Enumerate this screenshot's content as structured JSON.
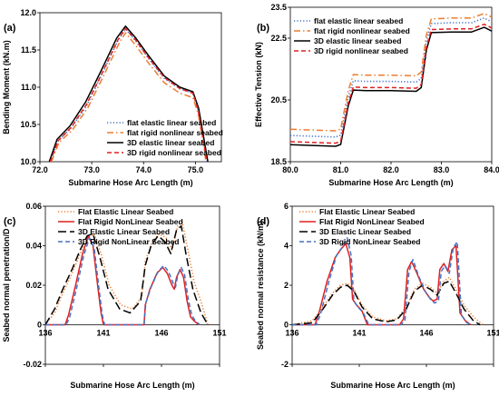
{
  "chart_data": [
    {
      "panel": "(a)",
      "type": "line",
      "xlabel": "Submarine Hose Arc Length (m)",
      "ylabel": "Bending Moment (kN.m)",
      "xlim": [
        72.0,
        75.5
      ],
      "ylim": [
        10.0,
        12.0
      ],
      "xticks": [
        "72.0",
        "73.0",
        "74.0",
        "75.0"
      ],
      "yticks": [
        "10.0",
        "10.5",
        "11.0",
        "11.5",
        "12.0"
      ],
      "legend_position": "bottom-right",
      "series": [
        {
          "name": "flat elastic linear seabed",
          "color": "#4472C4",
          "dash": "dotted",
          "x": [
            72.2,
            72.35,
            72.6,
            72.9,
            73.2,
            73.5,
            73.65,
            73.85,
            74.1,
            74.4,
            74.7,
            74.95,
            75.05,
            75.15,
            75.22
          ],
          "y": [
            10.0,
            10.28,
            10.45,
            10.75,
            11.18,
            11.62,
            11.78,
            11.62,
            11.38,
            11.12,
            10.98,
            10.92,
            10.7,
            10.3,
            10.0
          ]
        },
        {
          "name": "flat rigid nonlinear seabed",
          "color": "#ED7D31",
          "dash": "dashdot",
          "x": [
            72.22,
            72.37,
            72.62,
            72.92,
            73.22,
            73.52,
            73.65,
            73.85,
            74.1,
            74.4,
            74.7,
            74.95,
            75.05,
            75.15,
            75.2
          ],
          "y": [
            10.0,
            10.26,
            10.42,
            10.72,
            11.14,
            11.58,
            11.73,
            11.56,
            11.32,
            11.06,
            10.92,
            10.86,
            10.65,
            10.26,
            10.0
          ]
        },
        {
          "name": "3D elastic linear seabed",
          "color": "#000000",
          "dash": "solid",
          "x": [
            72.18,
            72.33,
            72.58,
            72.88,
            73.18,
            73.48,
            73.65,
            73.85,
            74.1,
            74.4,
            74.7,
            74.95,
            75.06,
            75.16,
            75.24
          ],
          "y": [
            10.0,
            10.3,
            10.48,
            10.8,
            11.22,
            11.66,
            11.82,
            11.66,
            11.42,
            11.15,
            11.0,
            10.94,
            10.72,
            10.32,
            10.0
          ]
        },
        {
          "name": "3D rigid nonlinear seabed",
          "color": "#E02020",
          "dash": "dashed",
          "x": [
            72.2,
            72.35,
            72.6,
            72.9,
            73.2,
            73.5,
            73.65,
            73.85,
            74.1,
            74.4,
            74.7,
            74.95,
            75.05,
            75.15,
            75.22
          ],
          "y": [
            10.0,
            10.28,
            10.46,
            10.77,
            11.19,
            11.63,
            11.79,
            11.63,
            11.39,
            11.13,
            10.98,
            10.92,
            10.7,
            10.3,
            10.0
          ]
        }
      ]
    },
    {
      "panel": "(b)",
      "type": "line",
      "xlabel": "Submarine Hose Arc Length (m)",
      "ylabel": "Effective Tension (kN)",
      "xlim": [
        80.0,
        84.0
      ],
      "ylim": [
        18.5,
        23.5
      ],
      "xticks": [
        "80.0",
        "81.0",
        "82.0",
        "83.0",
        "84.0"
      ],
      "yticks": [
        "18.5",
        "20.5",
        "22.5",
        "23.5"
      ],
      "ytick_values": [
        18.5,
        20.5,
        22.5,
        23.5
      ],
      "legend_position": "top-left",
      "series": [
        {
          "name": "flat elastic linear seabed",
          "color": "#4472C4",
          "dash": "dotted",
          "x": [
            80.0,
            80.5,
            80.9,
            81.0,
            81.15,
            81.25,
            81.5,
            82.0,
            82.5,
            82.6,
            82.7,
            82.8,
            83.2,
            83.6,
            83.85,
            84.0
          ],
          "y": [
            19.35,
            19.32,
            19.3,
            19.36,
            20.6,
            21.12,
            21.1,
            21.1,
            21.08,
            21.2,
            22.4,
            22.97,
            23.0,
            23.0,
            23.15,
            23.03
          ]
        },
        {
          "name": "flat rigid nonlinear seabed",
          "color": "#ED7D31",
          "dash": "dashdot",
          "x": [
            80.0,
            80.5,
            80.9,
            81.0,
            81.15,
            81.25,
            81.5,
            82.0,
            82.5,
            82.6,
            82.7,
            82.8,
            83.2,
            83.6,
            83.85,
            84.0
          ],
          "y": [
            19.55,
            19.52,
            19.5,
            19.56,
            20.8,
            21.32,
            21.3,
            21.3,
            21.28,
            21.4,
            22.6,
            23.12,
            23.15,
            23.15,
            23.3,
            23.18
          ]
        },
        {
          "name": "3D elastic linear seabed",
          "color": "#000000",
          "dash": "solid",
          "x": [
            80.0,
            80.5,
            80.9,
            81.0,
            81.15,
            81.25,
            81.5,
            82.0,
            82.5,
            82.6,
            82.7,
            82.8,
            83.2,
            83.6,
            83.85,
            84.0
          ],
          "y": [
            19.05,
            19.02,
            19.0,
            19.06,
            20.3,
            20.82,
            20.8,
            20.8,
            20.78,
            20.9,
            22.1,
            22.68,
            22.7,
            22.7,
            22.85,
            22.73
          ]
        },
        {
          "name": "3D rigid nonlinear seabed",
          "color": "#E02020",
          "dash": "dashed",
          "x": [
            80.0,
            80.5,
            80.9,
            81.0,
            81.15,
            81.25,
            81.5,
            82.0,
            82.5,
            82.6,
            82.7,
            82.8,
            83.2,
            83.6,
            83.85,
            84.0
          ],
          "y": [
            19.15,
            19.12,
            19.1,
            19.16,
            20.4,
            20.92,
            20.9,
            20.9,
            20.88,
            21.0,
            22.2,
            22.78,
            22.8,
            22.8,
            22.95,
            22.83
          ]
        }
      ]
    },
    {
      "panel": "(c)",
      "type": "line",
      "xlabel": "Submarine Hose Arc Length (m)",
      "ylabel": "Seabed normal penetration/D",
      "xlim": [
        136,
        151
      ],
      "ylim": [
        -0.02,
        0.06
      ],
      "xticks": [
        "136",
        "141",
        "146",
        "151"
      ],
      "xtick_values": [
        136,
        141,
        146,
        151
      ],
      "yticks": [
        "-0.02",
        "0",
        "0.02",
        "0.04",
        "0.06"
      ],
      "ytick_values": [
        -0.02,
        0,
        0.02,
        0.04,
        0.06
      ],
      "legend_position": "top-left",
      "series": [
        {
          "name": "Flat Elastic Linear Seabed",
          "color": "#ED7D31",
          "dash": "dotted",
          "x": [
            136.0,
            136.8,
            137.5,
            138.3,
            139.0,
            139.6,
            140.2,
            140.8,
            141.5,
            142.5,
            143.5,
            144.3,
            144.6,
            145.2,
            145.8,
            146.4,
            146.9,
            147.4,
            147.8,
            148.2,
            148.8,
            149.5,
            150.0
          ],
          "y": [
            0.0,
            0.006,
            0.016,
            0.026,
            0.036,
            0.044,
            0.046,
            0.036,
            0.02,
            0.01,
            0.008,
            0.014,
            0.032,
            0.042,
            0.046,
            0.044,
            0.038,
            0.05,
            0.052,
            0.04,
            0.022,
            0.01,
            0.0
          ]
        },
        {
          "name": "Flat Rigid NonLinear Seabed",
          "color": "#E02020",
          "dash": "solid",
          "x": [
            136.0,
            137.7,
            138.0,
            138.6,
            139.2,
            139.7,
            140.1,
            140.5,
            140.8,
            141.0,
            141.2,
            144.5,
            144.6,
            145.0,
            145.6,
            146.1,
            146.5,
            146.9,
            147.1,
            147.3,
            147.6,
            147.9,
            148.2,
            148.5,
            148.8,
            149.2
          ],
          "y": [
            0.0,
            0.0,
            0.005,
            0.02,
            0.036,
            0.045,
            0.04,
            0.02,
            0.006,
            0.0,
            0.0,
            0.0,
            0.01,
            0.018,
            0.026,
            0.029,
            0.026,
            0.02,
            0.018,
            0.024,
            0.028,
            0.024,
            0.012,
            0.004,
            0.002,
            0.0
          ]
        },
        {
          "name": "3D Elastic Linear Seabed",
          "color": "#000000",
          "dash": "longdash",
          "x": [
            136.0,
            136.8,
            137.5,
            138.3,
            139.0,
            139.6,
            140.1,
            140.7,
            141.4,
            142.4,
            143.3,
            144.2,
            144.6,
            145.1,
            145.7,
            146.3,
            146.8,
            147.3,
            147.7,
            148.1,
            148.7,
            149.4,
            150.0
          ],
          "y": [
            0.0,
            0.008,
            0.018,
            0.028,
            0.038,
            0.045,
            0.046,
            0.034,
            0.018,
            0.008,
            0.006,
            0.012,
            0.03,
            0.04,
            0.045,
            0.042,
            0.036,
            0.048,
            0.05,
            0.036,
            0.018,
            0.006,
            0.0
          ]
        },
        {
          "name": "3D Rigid NonLinear Seabed",
          "color": "#4472C4",
          "dash": "dashed",
          "x": [
            136.0,
            137.8,
            138.1,
            138.7,
            139.3,
            139.8,
            140.2,
            140.6,
            140.9,
            141.1,
            141.3,
            144.5,
            144.65,
            145.1,
            145.7,
            146.2,
            146.6,
            147.0,
            147.2,
            147.4,
            147.7,
            148.0,
            148.3,
            148.6,
            148.9,
            149.3
          ],
          "y": [
            0.0,
            0.0,
            0.004,
            0.019,
            0.035,
            0.044,
            0.039,
            0.019,
            0.005,
            0.0,
            0.0,
            0.0,
            0.011,
            0.019,
            0.027,
            0.03,
            0.027,
            0.021,
            0.019,
            0.025,
            0.029,
            0.025,
            0.013,
            0.005,
            0.002,
            0.0
          ]
        }
      ]
    },
    {
      "panel": "(d)",
      "type": "line",
      "xlabel": "Submarine Hose Arc Length (m)",
      "ylabel": "Seabed normal resistance (kN/m)",
      "xlim": [
        136,
        151
      ],
      "ylim": [
        -2,
        6
      ],
      "xticks": [
        "136",
        "141",
        "146",
        "151"
      ],
      "xtick_values": [
        136,
        141,
        146,
        151
      ],
      "yticks": [
        "-2",
        "0",
        "2",
        "4",
        "6"
      ],
      "ytick_values": [
        -2,
        0,
        2,
        4,
        6
      ],
      "legend_position": "top-left",
      "series": [
        {
          "name": "Flat Elastic Linear Seabed",
          "color": "#ED7D31",
          "dash": "dotted",
          "x": [
            136.0,
            137.5,
            138.3,
            139.0,
            139.6,
            140.1,
            140.6,
            141.2,
            142.0,
            143.0,
            143.8,
            144.5,
            145.1,
            145.7,
            146.3,
            146.8,
            147.3,
            147.7,
            148.2,
            148.8,
            149.5,
            150.2
          ],
          "y": [
            0.0,
            0.2,
            0.9,
            1.6,
            2.0,
            2.1,
            1.8,
            1.0,
            0.4,
            0.2,
            0.3,
            0.9,
            1.8,
            2.1,
            1.9,
            1.6,
            2.2,
            2.4,
            1.8,
            1.0,
            0.4,
            0.0
          ]
        },
        {
          "name": "Flat Rigid NonLinear Seabed",
          "color": "#E02020",
          "dash": "solid",
          "x": [
            136.0,
            137.7,
            138.0,
            138.6,
            139.2,
            139.6,
            140.0,
            140.3,
            140.5,
            140.8,
            141.2,
            141.6,
            144.0,
            144.3,
            144.6,
            144.9,
            145.3,
            145.8,
            146.2,
            146.5,
            146.8,
            147.0,
            147.3,
            147.6,
            147.9,
            148.2,
            148.5,
            148.9,
            149.3
          ],
          "y": [
            0.0,
            0.0,
            0.6,
            2.2,
            3.4,
            3.8,
            4.1,
            3.4,
            1.3,
            1.0,
            0.7,
            0.0,
            0.0,
            0.3,
            2.8,
            3.2,
            2.6,
            1.8,
            1.4,
            1.2,
            1.3,
            2.8,
            3.1,
            2.7,
            3.8,
            4.0,
            0.6,
            0.2,
            0.0
          ]
        },
        {
          "name": "3D Elastic Linear Seabed",
          "color": "#000000",
          "dash": "longdash",
          "x": [
            136.0,
            137.5,
            138.3,
            139.0,
            139.6,
            140.1,
            140.6,
            141.2,
            142.0,
            143.0,
            143.8,
            144.5,
            145.1,
            145.7,
            146.3,
            146.8,
            147.3,
            147.7,
            148.2,
            148.8,
            149.5,
            150.0
          ],
          "y": [
            0.0,
            0.1,
            0.8,
            1.5,
            1.9,
            2.0,
            1.7,
            0.9,
            0.3,
            0.15,
            0.25,
            0.8,
            1.7,
            2.0,
            1.8,
            1.5,
            2.1,
            2.2,
            1.6,
            0.8,
            0.2,
            0.0
          ]
        },
        {
          "name": "3D Rigid NonLinear Seabed",
          "color": "#4472C4",
          "dash": "dashed",
          "x": [
            136.0,
            137.8,
            138.1,
            138.7,
            139.3,
            139.7,
            140.1,
            140.4,
            140.6,
            140.9,
            141.3,
            141.7,
            144.1,
            144.4,
            144.7,
            145.0,
            145.4,
            145.9,
            146.3,
            146.6,
            146.9,
            147.1,
            147.4,
            147.7,
            148.0,
            148.3,
            148.6,
            149.0,
            149.4
          ],
          "y": [
            0.0,
            0.0,
            0.5,
            2.1,
            3.5,
            3.9,
            4.4,
            3.5,
            1.2,
            0.9,
            0.6,
            0.0,
            0.0,
            0.2,
            2.7,
            3.3,
            2.5,
            1.7,
            1.3,
            1.1,
            1.2,
            2.7,
            3.0,
            2.6,
            3.9,
            4.2,
            0.5,
            0.1,
            0.0
          ]
        }
      ]
    }
  ]
}
